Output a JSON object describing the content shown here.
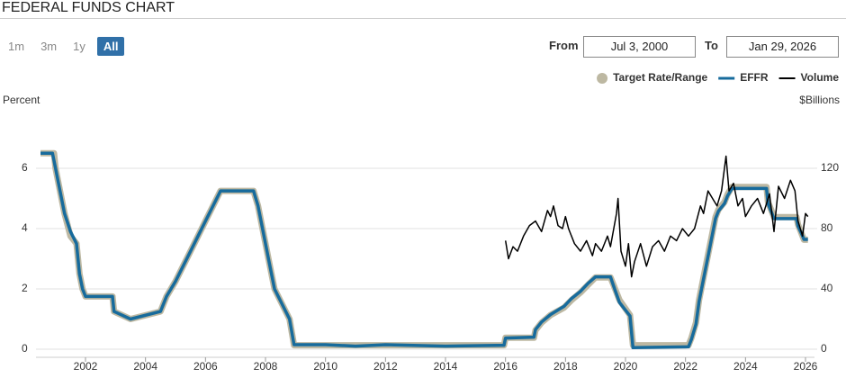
{
  "header": {
    "title": "FEDERAL FUNDS CHART"
  },
  "controls": {
    "ranges": [
      "1m",
      "3m",
      "1y",
      "All"
    ]
  },
  "date_range": {
    "from_label": "From",
    "from": "Jul 3, 2000",
    "to_label": "To",
    "to": "Jan 29, 2026"
  },
  "chart_data": {
    "type": "line",
    "ylabel": "Percent",
    "y2label": "$Billions",
    "xlim": [
      2000.35,
      2026.3
    ],
    "xticks": [
      2002,
      2004,
      2006,
      2008,
      2010,
      2012,
      2014,
      2016,
      2018,
      2020,
      2022,
      2024,
      2026
    ],
    "ylim": [
      0,
      7.55
    ],
    "yticks": [
      0,
      2,
      4,
      6
    ],
    "y2lim": [
      0,
      151
    ],
    "y2ticks": [
      0,
      40,
      80,
      120
    ],
    "grid": true,
    "legend": "top-right",
    "series": [
      {
        "name": "Target Rate/Range",
        "color": "#bdb8a2",
        "x": [
          2000.5,
          2000.95,
          2001.0,
          2001.1,
          2001.3,
          2001.5,
          2001.7,
          2001.8,
          2001.9,
          2002.0,
          2002.9,
          2002.95,
          2003.5,
          2004.5,
          2004.7,
          2005.0,
          2005.5,
          2006.0,
          2006.5,
          2007.6,
          2007.75,
          2008.0,
          2008.1,
          2008.3,
          2008.8,
          2008.95,
          2015.95,
          2016.0,
          2016.95,
          2017.0,
          2017.2,
          2017.5,
          2017.95,
          2018.2,
          2018.5,
          2018.75,
          2019.0,
          2019.5,
          2019.6,
          2019.8,
          2020.15,
          2020.25,
          2022.1,
          2022.2,
          2022.35,
          2022.45,
          2022.6,
          2022.75,
          2022.9,
          2023.0,
          2023.1,
          2023.3,
          2023.4,
          2023.55,
          2024.7,
          2024.75,
          2024.85,
          2024.95,
          2025.7,
          2025.75,
          2025.85,
          2025.95,
          2026.08
        ],
        "values": [
          6.5,
          6.5,
          6.0,
          5.5,
          4.5,
          3.75,
          3.5,
          2.5,
          2.0,
          1.75,
          1.75,
          1.25,
          1.0,
          1.25,
          1.75,
          2.25,
          3.25,
          4.25,
          5.25,
          5.25,
          4.75,
          3.5,
          3.0,
          2.0,
          1.0,
          0.13,
          0.13,
          0.38,
          0.38,
          0.63,
          0.88,
          1.13,
          1.38,
          1.63,
          1.88,
          2.13,
          2.38,
          2.38,
          2.13,
          1.63,
          1.13,
          0.13,
          0.13,
          0.38,
          0.88,
          1.63,
          2.38,
          3.13,
          3.88,
          4.38,
          4.63,
          4.88,
          5.13,
          5.38,
          5.38,
          4.88,
          4.63,
          4.38,
          4.38,
          4.13,
          3.88,
          3.63,
          3.63
        ]
      },
      {
        "name": "EFFR",
        "color": "#176b9c",
        "x": [
          2000.5,
          2000.9,
          2001.0,
          2001.1,
          2001.3,
          2001.5,
          2001.7,
          2001.8,
          2001.9,
          2002.0,
          2002.9,
          2002.95,
          2003.5,
          2004.5,
          2004.7,
          2005.0,
          2005.5,
          2006.0,
          2006.5,
          2007.6,
          2007.75,
          2008.0,
          2008.1,
          2008.3,
          2008.8,
          2008.95,
          2010.0,
          2011.0,
          2012.0,
          2014.0,
          2015.95,
          2016.0,
          2016.95,
          2017.0,
          2017.2,
          2017.5,
          2017.95,
          2018.2,
          2018.5,
          2018.75,
          2019.0,
          2019.5,
          2019.6,
          2019.8,
          2020.15,
          2020.25,
          2022.1,
          2022.2,
          2022.35,
          2022.45,
          2022.6,
          2022.75,
          2022.9,
          2023.0,
          2023.1,
          2023.3,
          2023.4,
          2023.55,
          2024.7,
          2024.75,
          2024.85,
          2024.95,
          2025.7,
          2025.75,
          2025.85,
          2025.95,
          2026.08
        ],
        "values": [
          6.5,
          6.5,
          6.0,
          5.5,
          4.5,
          3.9,
          3.5,
          2.5,
          2.0,
          1.75,
          1.75,
          1.25,
          1.0,
          1.25,
          1.75,
          2.25,
          3.25,
          4.25,
          5.25,
          5.25,
          4.75,
          3.5,
          3.0,
          2.0,
          1.0,
          0.15,
          0.15,
          0.1,
          0.15,
          0.1,
          0.13,
          0.37,
          0.4,
          0.65,
          0.9,
          1.15,
          1.42,
          1.68,
          1.92,
          2.18,
          2.4,
          2.4,
          2.1,
          1.55,
          1.1,
          0.05,
          0.08,
          0.33,
          0.83,
          1.58,
          2.33,
          3.08,
          3.83,
          4.33,
          4.58,
          4.83,
          5.08,
          5.33,
          5.33,
          4.83,
          4.58,
          4.33,
          4.33,
          4.08,
          3.87,
          3.64,
          3.64
        ]
      },
      {
        "name": "Volume",
        "color": "#000000",
        "axis": "y2",
        "x": [
          2016.0,
          2016.1,
          2016.25,
          2016.4,
          2016.6,
          2016.8,
          2017.0,
          2017.2,
          2017.4,
          2017.5,
          2017.6,
          2017.75,
          2017.9,
          2018.0,
          2018.1,
          2018.3,
          2018.5,
          2018.7,
          2018.9,
          2019.0,
          2019.2,
          2019.4,
          2019.5,
          2019.7,
          2019.75,
          2019.85,
          2020.0,
          2020.1,
          2020.2,
          2020.3,
          2020.5,
          2020.7,
          2020.9,
          2021.1,
          2021.3,
          2021.5,
          2021.7,
          2021.9,
          2022.1,
          2022.3,
          2022.5,
          2022.6,
          2022.75,
          2022.9,
          2023.05,
          2023.2,
          2023.35,
          2023.45,
          2023.6,
          2023.75,
          2023.9,
          2024.0,
          2024.2,
          2024.4,
          2024.6,
          2024.8,
          2024.95,
          2025.1,
          2025.3,
          2025.5,
          2025.65,
          2025.75,
          2025.9,
          2026.0,
          2026.08
        ],
        "values": [
          72,
          60,
          68,
          65,
          75,
          82,
          85,
          78,
          92,
          88,
          95,
          82,
          80,
          88,
          80,
          70,
          65,
          72,
          62,
          70,
          65,
          75,
          68,
          90,
          100,
          65,
          55,
          70,
          48,
          58,
          70,
          55,
          68,
          72,
          65,
          75,
          72,
          80,
          75,
          80,
          95,
          90,
          105,
          100,
          95,
          105,
          128,
          105,
          110,
          95,
          100,
          88,
          95,
          100,
          90,
          103,
          78,
          108,
          100,
          112,
          105,
          85,
          75,
          90,
          88
        ]
      }
    ]
  }
}
